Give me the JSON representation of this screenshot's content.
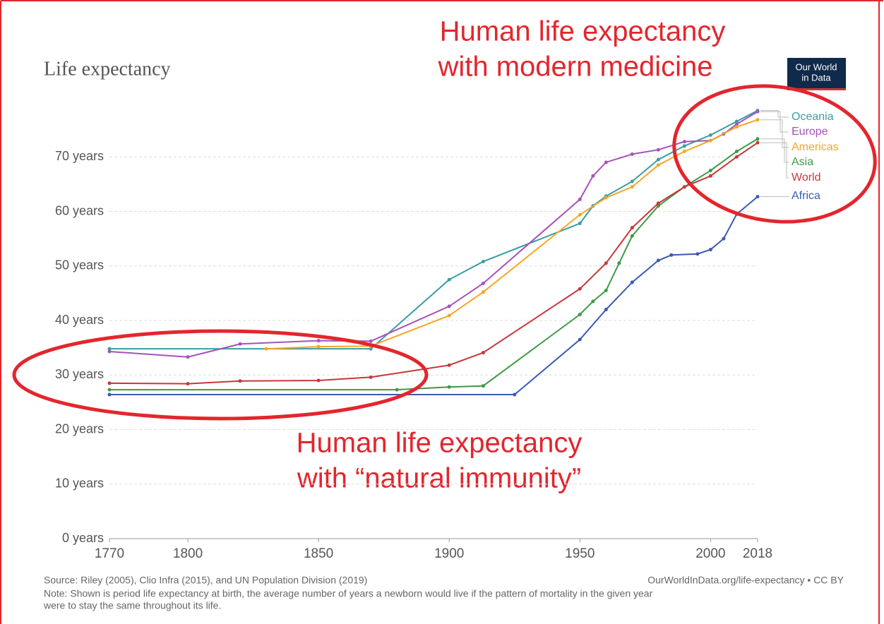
{
  "chart_data": {
    "type": "line",
    "title": "Life expectancy",
    "logo": [
      "Our World",
      "in Data"
    ],
    "annotations": [
      [
        "Human life expectancy",
        "with modern medicine"
      ],
      [
        "Human life expectancy",
        "with “natural immunity”"
      ]
    ],
    "source": "Source: Riley (2005), Clio Infra (2015), and UN Population Division (2019)",
    "credit": "OurWorldInData.org/life-expectancy • CC BY",
    "note": [
      "Note: Shown is period life expectancy at birth, the average number of years a newborn would live if the pattern of mortality in the given year",
      "were to stay the same throughout its life."
    ],
    "xlim": [
      1770,
      2018
    ],
    "xticks": [
      1770,
      1800,
      1850,
      1900,
      1950,
      2000,
      2018
    ],
    "ylim": [
      0,
      80
    ],
    "yticks": [
      {
        "value": 0,
        "label": "0 years"
      },
      {
        "value": 10,
        "label": "10 years"
      },
      {
        "value": 20,
        "label": "20 years"
      },
      {
        "value": 30,
        "label": "30 years"
      },
      {
        "value": 40,
        "label": "40 years"
      },
      {
        "value": 50,
        "label": "50 years"
      },
      {
        "value": 60,
        "label": "60 years"
      },
      {
        "value": 70,
        "label": "70 years"
      }
    ],
    "grid": true,
    "series": [
      {
        "name": "Oceania",
        "color": "#3a9ea5",
        "x": [
          1770,
          1870,
          1900,
          1913,
          1950,
          1955,
          1960,
          1970,
          1980,
          1990,
          2000,
          2010,
          2018
        ],
        "values": [
          34.8,
          34.8,
          47.5,
          50.8,
          57.8,
          61,
          62.8,
          65.5,
          69.5,
          72,
          74,
          76.5,
          78.5
        ]
      },
      {
        "name": "Europe",
        "color": "#a652ba",
        "x": [
          1770,
          1800,
          1820,
          1850,
          1870,
          1900,
          1913,
          1950,
          1955,
          1960,
          1970,
          1980,
          1990,
          2000,
          2005,
          2010,
          2018
        ],
        "values": [
          34.3,
          33.3,
          35.7,
          36.3,
          36.2,
          42.6,
          46.8,
          62.2,
          66.5,
          69,
          70.5,
          71.3,
          72.8,
          73,
          74.2,
          76,
          78.3
        ]
      },
      {
        "name": "Americas",
        "color": "#f6a623",
        "x": [
          1830,
          1850,
          1870,
          1900,
          1913,
          1950,
          1960,
          1970,
          1980,
          1990,
          2000,
          2010,
          2018
        ],
        "values": [
          34.8,
          35.2,
          35.3,
          40.9,
          45.2,
          59.4,
          62.5,
          64.5,
          68.5,
          71,
          73,
          75.5,
          76.8
        ]
      },
      {
        "name": "Asia",
        "color": "#3d9a46",
        "x": [
          1770,
          1880,
          1900,
          1913,
          1950,
          1955,
          1960,
          1965,
          1970,
          1980,
          1990,
          2000,
          2010,
          2018
        ],
        "values": [
          27.3,
          27.3,
          27.8,
          28,
          41.1,
          43.5,
          45.5,
          50.5,
          55.5,
          61,
          64.5,
          67.5,
          71,
          73.3
        ]
      },
      {
        "name": "World",
        "color": "#c8373b",
        "x": [
          1770,
          1800,
          1820,
          1850,
          1870,
          1900,
          1913,
          1950,
          1960,
          1970,
          1980,
          1990,
          2000,
          2010,
          2018
        ],
        "values": [
          28.5,
          28.4,
          28.9,
          29,
          29.6,
          31.8,
          34.1,
          45.8,
          50.5,
          57,
          61.5,
          64.5,
          66.5,
          70,
          72.6
        ]
      },
      {
        "name": "Africa",
        "color": "#3a5bb3",
        "x": [
          1770,
          1925,
          1950,
          1960,
          1970,
          1980,
          1985,
          1995,
          2000,
          2005,
          2010,
          2018
        ],
        "values": [
          26.4,
          26.4,
          36.5,
          42,
          47,
          51,
          52,
          52.2,
          53,
          55,
          59.5,
          62.7
        ]
      }
    ]
  }
}
